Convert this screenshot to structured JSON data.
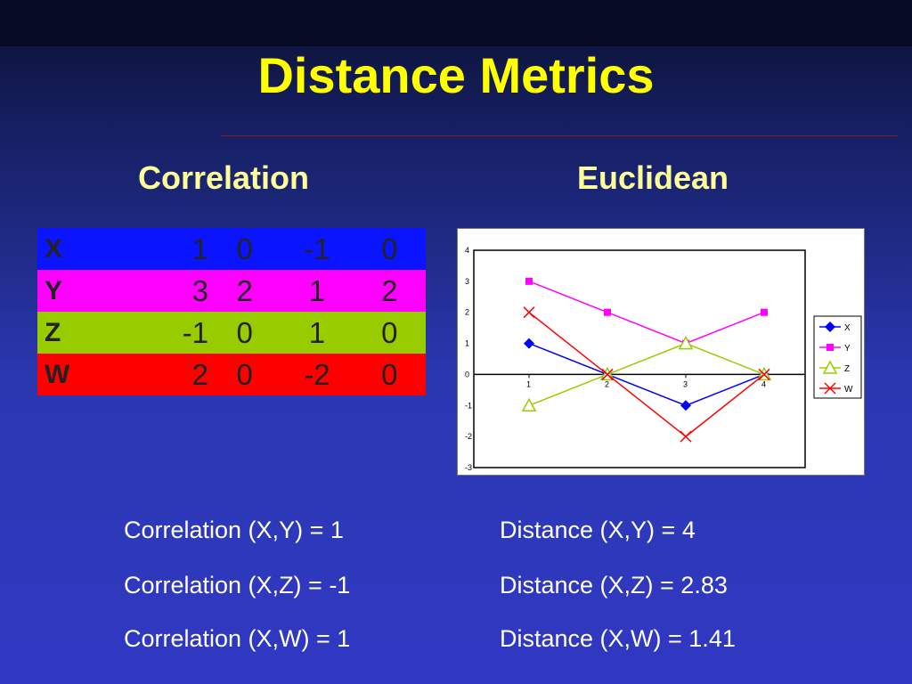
{
  "title": "Distance Metrics",
  "headings": {
    "correlation": "Correlation",
    "euclidean": "Euclidean"
  },
  "matrix": {
    "rows": [
      {
        "label": "X",
        "values": [
          "1",
          "0",
          "-1",
          "0"
        ],
        "color": "#0a14ff"
      },
      {
        "label": "Y",
        "values": [
          "3",
          "2",
          "1",
          "2"
        ],
        "color": "#ff00ff"
      },
      {
        "label": "Z",
        "values": [
          "-1",
          "0",
          "1",
          "0"
        ],
        "color": "#99cc00"
      },
      {
        "label": "W",
        "values": [
          "2",
          "0",
          "-2",
          "0"
        ],
        "color": "#ff0000"
      }
    ]
  },
  "chart_data": {
    "type": "line",
    "x": [
      1,
      2,
      3,
      4
    ],
    "xticks": [
      "1",
      "2",
      "3",
      "4"
    ],
    "ylim": [
      -3,
      4
    ],
    "yticks": [
      "4",
      "3",
      "2",
      "1",
      "0",
      "-1",
      "-2",
      "-3"
    ],
    "grid": false,
    "legend_position": "right",
    "series": [
      {
        "name": "X",
        "values": [
          1,
          0,
          -1,
          0
        ],
        "color": "#0000ff",
        "marker": "diamond"
      },
      {
        "name": "Y",
        "values": [
          3,
          2,
          1,
          2
        ],
        "color": "#ff00ff",
        "marker": "square"
      },
      {
        "name": "Z",
        "values": [
          -1,
          0,
          1,
          0
        ],
        "color": "#99cc00",
        "marker": "triangle"
      },
      {
        "name": "W",
        "values": [
          2,
          0,
          -2,
          0
        ],
        "color": "#ff0000",
        "marker": "x"
      }
    ]
  },
  "stats": {
    "correlation": [
      "Correlation (X,Y) = 1",
      "Correlation (X,Z) = -1",
      "Correlation (X,W) = 1"
    ],
    "distance": [
      "Distance (X,Y) = 4",
      "Distance (X,Z) = 2.83",
      "Distance (X,W) = 1.41"
    ]
  }
}
